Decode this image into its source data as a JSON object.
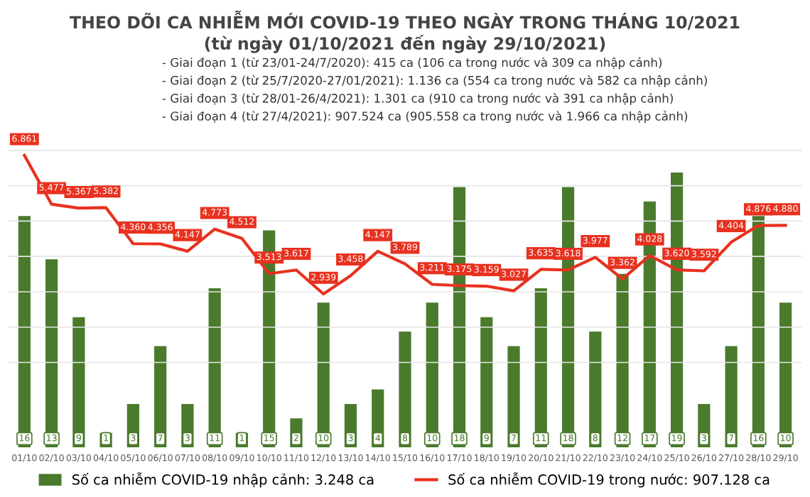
{
  "chart_data": {
    "type": "bar",
    "title": "THEO DÕI CA NHIỄM MỚI COVID-19 THEO NGÀY TRONG THÁNG 10/2021",
    "subtitle": "(từ ngày 01/10/2021 đến ngày 29/10/2021)",
    "annotations": [
      "- Giai đoạn 1 (từ 23/01-24/7/2020): 415 ca (106 ca trong nước và 309 ca nhập cảnh)",
      "- Giai đoạn 2 (từ 25/7/2020-27/01/2021): 1.136 ca (554 ca trong nước và 582 ca nhập cảnh)",
      "- Giai đoạn 3 (từ 28/01-26/4/2021): 1.301 ca (910 ca trong nước và 391 ca nhập cảnh)",
      "- Giai đoạn 4 (từ 27/4/2021): 907.524 ca (905.558 ca trong nước và 1.966 ca nhập cảnh)"
    ],
    "categories": [
      "01/10",
      "02/10",
      "03/10",
      "04/10",
      "05/10",
      "06/10",
      "07/10",
      "08/10",
      "09/10",
      "10/10",
      "11/10",
      "12/10",
      "13/10",
      "14/10",
      "15/10",
      "16/10",
      "17/10",
      "18/10",
      "19/10",
      "20/10",
      "21/10",
      "22/10",
      "23/10",
      "24/10",
      "25/10",
      "26/10",
      "27/10",
      "28/10",
      "29/10"
    ],
    "series": [
      {
        "name": "Số ca nhiễm COVID-19 nhập cảnh: 3.248 ca",
        "color": "#4a7a2c",
        "data_labels": true,
        "values": [
          16,
          13,
          9,
          1,
          3,
          7,
          3,
          11,
          1,
          15,
          2,
          10,
          3,
          4,
          8,
          10,
          18,
          9,
          7,
          11,
          18,
          8,
          12,
          17,
          19,
          3,
          7,
          16,
          10
        ]
      },
      {
        "name": "Số ca nhiễm COVID-19 trong nước: 907.128 ca",
        "type": "line",
        "axis": "y2",
        "color": "#e8311f",
        "marker": "none",
        "values": [
          6861,
          5477,
          5367,
          5382,
          4360,
          4356,
          4147,
          4773,
          4512,
          3513,
          3617,
          2939,
          3458,
          4147,
          3789,
          3211,
          3175,
          3159,
          3027,
          3635,
          3618,
          3977,
          3362,
          4028,
          3620,
          3592,
          4404,
          4876,
          4880
        ],
        "value_labels": [
          "6.861",
          "5.477",
          "5.367",
          "5.382",
          "4.360",
          "4.356",
          "4.147",
          "4.773",
          "4.512",
          "3.513",
          "3.617",
          "2.939",
          "3.458",
          "4.147",
          "3.789",
          "3.211",
          "3.175",
          "3.159",
          "3.027",
          "3.635",
          "3.618",
          "3.977",
          "3.362",
          "4.028",
          "3.620",
          "3.592",
          "4.404",
          "4.876",
          "4.880"
        ]
      }
    ],
    "ylim": [
      0,
      22
    ],
    "y2lim": [
      -1400,
      7600
    ],
    "y2ticks": [
      {
        "value": 1000,
        "label": null
      },
      {
        "value": 2000,
        "label": null
      },
      {
        "value": 3000,
        "label": null
      },
      {
        "value": 4000,
        "label": null
      },
      {
        "value": 5000,
        "label": null
      },
      {
        "value": 6000,
        "label": null
      },
      {
        "value": 7000,
        "label": null
      }
    ],
    "grid": "y2",
    "tick_labels": "x",
    "legend": "bottom"
  }
}
